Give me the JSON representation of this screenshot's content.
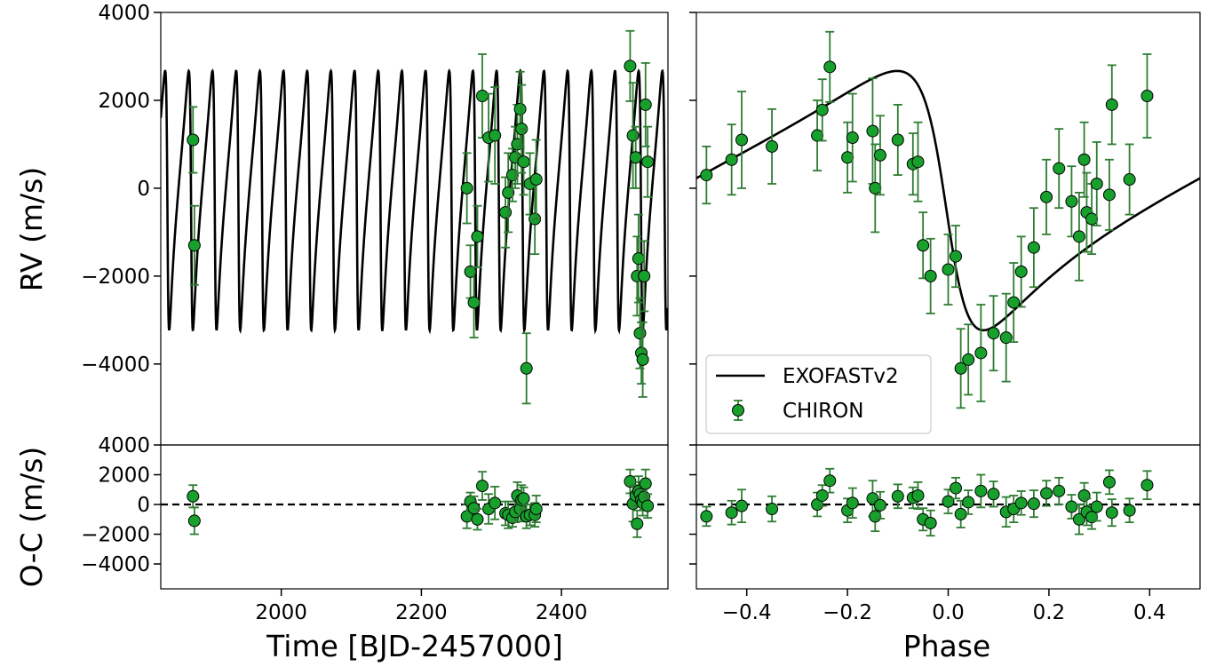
{
  "chart_data": [
    {
      "id": "rv_time",
      "type": "scatter",
      "ylabel": "RV (m/s)",
      "xlim": [
        1828,
        2552
      ],
      "ylim": [
        -5750,
        4000
      ],
      "yticks": [
        -4000,
        -2000,
        0,
        2000,
        4000
      ],
      "xticks": [
        2000,
        2200,
        2400
      ],
      "ytick_labels": [
        "−4000",
        "−2000",
        "0",
        "2000",
        "4000"
      ],
      "model": {
        "name": "EXOFASTv2",
        "color": "#000000",
        "period_days": 33.8,
        "t_min_rv": 1840,
        "k": 2950,
        "e": 0.55,
        "omega_deg": 100,
        "gamma": 0
      },
      "series": [
        {
          "name": "CHIRON",
          "color": "#18a02d",
          "error_color": "#2e7d32",
          "x": [
            1874,
            1876,
            2265,
            2270,
            2275,
            2280,
            2287,
            2296,
            2305,
            2320,
            2324,
            2330,
            2334,
            2337,
            2341,
            2343,
            2346,
            2350,
            2355,
            2362,
            2364,
            2498,
            2502,
            2506,
            2508,
            2510,
            2512,
            2514,
            2516,
            2518,
            2520,
            2523
          ],
          "y": [
            1100,
            -1300,
            0,
            -1900,
            -2600,
            -1100,
            2100,
            1150,
            1200,
            -550,
            -100,
            300,
            700,
            1000,
            1800,
            1350,
            600,
            -4100,
            100,
            -700,
            200,
            2780,
            1200,
            700,
            -2000,
            -1600,
            -3300,
            -3750,
            -3900,
            -2000,
            1900,
            600
          ],
          "yerr": [
            750,
            900,
            800,
            600,
            800,
            700,
            950,
            1000,
            1100,
            800,
            900,
            600,
            700,
            900,
            850,
            1000,
            750,
            800,
            700,
            800,
            900,
            800,
            1200,
            700,
            900,
            1000,
            800,
            700,
            850,
            800,
            950,
            800
          ]
        }
      ]
    },
    {
      "id": "rv_phase",
      "type": "scatter",
      "xlabel": "Phase",
      "xlim": [
        -0.5,
        0.5
      ],
      "ylim": [
        -5750,
        4000
      ],
      "yticks": [
        -4000,
        -2000,
        0,
        2000,
        4000
      ],
      "xticks": [
        -0.4,
        -0.2,
        0.0,
        0.2,
        0.4
      ],
      "xtick_labels": [
        "−0.4",
        "−0.2",
        "0.0",
        "0.2",
        "0.4"
      ],
      "legend": {
        "position": "lower-left",
        "entries": [
          "EXOFASTv2",
          "CHIRON"
        ]
      },
      "model": {
        "name": "EXOFASTv2",
        "color": "#000000",
        "phase_min_rv": 0.07,
        "k": 2950,
        "e": 0.55,
        "omega_deg": 100,
        "gamma": 0
      },
      "series": [
        {
          "name": "CHIRON",
          "color": "#18a02d",
          "error_color": "#2e7d32",
          "x": [
            -0.48,
            -0.43,
            -0.41,
            -0.35,
            -0.26,
            -0.25,
            -0.235,
            -0.2,
            -0.19,
            -0.15,
            -0.145,
            -0.135,
            -0.1,
            -0.07,
            -0.06,
            -0.05,
            -0.035,
            0.0,
            0.015,
            0.025,
            0.04,
            0.065,
            0.09,
            0.115,
            0.13,
            0.145,
            0.17,
            0.195,
            0.22,
            0.245,
            0.26,
            0.27,
            0.275,
            0.285,
            0.295,
            0.32,
            0.325,
            0.36,
            0.395
          ],
          "y": [
            300,
            650,
            1100,
            950,
            1200,
            1780,
            2760,
            700,
            1150,
            1300,
            0,
            750,
            1100,
            550,
            600,
            -1300,
            -2000,
            -1850,
            -1550,
            -4100,
            -3900,
            -3750,
            -3300,
            -3400,
            -2600,
            -1900,
            -1350,
            -200,
            450,
            -300,
            -1100,
            650,
            -550,
            -700,
            100,
            -150,
            1900,
            200,
            2100
          ],
          "yerr": [
            650,
            800,
            1100,
            850,
            800,
            700,
            800,
            800,
            1000,
            1200,
            1000,
            900,
            800,
            700,
            900,
            750,
            850,
            800,
            700,
            900,
            800,
            1100,
            850,
            1000,
            900,
            800,
            900,
            850,
            900,
            800,
            1000,
            850,
            900,
            800,
            950,
            800,
            900,
            800,
            950
          ]
        }
      ]
    },
    {
      "id": "oc_time",
      "type": "scatter",
      "xlabel": "Time [BJD-2457000]",
      "ylabel": "O-C (m/s)",
      "xlim": [
        1828,
        2552
      ],
      "ylim": [
        -5750,
        4000
      ],
      "yticks": [
        -4000,
        -2000,
        0,
        2000,
        4000
      ],
      "xticks": [
        2000,
        2200,
        2400
      ],
      "ytick_labels": [
        "−4000",
        "−2000",
        "0",
        "2000",
        "4000"
      ],
      "xtick_labels": [
        "2000",
        "2200",
        "2400"
      ],
      "series": [
        {
          "name": "CHIRON",
          "color": "#18a02d",
          "error_color": "#2e7d32",
          "x": [
            1874,
            1876,
            2265,
            2270,
            2275,
            2280,
            2287,
            2296,
            2305,
            2320,
            2324,
            2330,
            2334,
            2337,
            2341,
            2343,
            2346,
            2350,
            2355,
            2362,
            2364,
            2498,
            2502,
            2506,
            2508,
            2510,
            2512,
            2514,
            2516,
            2518,
            2520,
            2523
          ],
          "y": [
            550,
            -1100,
            -800,
            200,
            -250,
            -1000,
            1250,
            -300,
            100,
            -600,
            -700,
            -900,
            -500,
            600,
            -300,
            300,
            400,
            -800,
            -700,
            -700,
            -300,
            1550,
            50,
            600,
            -1300,
            900,
            700,
            300,
            100,
            500,
            1400,
            -100
          ],
          "yerr": [
            750,
            900,
            800,
            600,
            800,
            700,
            950,
            1000,
            1100,
            800,
            900,
            600,
            700,
            900,
            850,
            1000,
            750,
            800,
            700,
            800,
            900,
            800,
            1200,
            700,
            900,
            1000,
            800,
            700,
            850,
            800,
            950,
            800
          ]
        }
      ],
      "reference_line": {
        "y": 0,
        "style": "dashed"
      }
    },
    {
      "id": "oc_phase",
      "type": "scatter",
      "xlim": [
        -0.5,
        0.5
      ],
      "ylim": [
        -5750,
        4000
      ],
      "yticks": [
        -4000,
        -2000,
        0,
        2000,
        4000
      ],
      "xticks": [
        -0.4,
        -0.2,
        0.0,
        0.2,
        0.4
      ],
      "series": [
        {
          "name": "CHIRON",
          "color": "#18a02d",
          "error_color": "#2e7d32",
          "x": [
            -0.48,
            -0.43,
            -0.41,
            -0.35,
            -0.26,
            -0.25,
            -0.235,
            -0.2,
            -0.19,
            -0.15,
            -0.145,
            -0.135,
            -0.1,
            -0.07,
            -0.06,
            -0.05,
            -0.035,
            0.0,
            0.015,
            0.025,
            0.04,
            0.065,
            0.09,
            0.115,
            0.13,
            0.145,
            0.17,
            0.195,
            0.22,
            0.245,
            0.26,
            0.27,
            0.275,
            0.285,
            0.295,
            0.32,
            0.325,
            0.36,
            0.395
          ],
          "y": [
            -800,
            -550,
            -100,
            -300,
            0,
            600,
            1600,
            -400,
            100,
            400,
            -800,
            -50,
            550,
            450,
            600,
            -1000,
            -1250,
            200,
            1100,
            -650,
            150,
            900,
            700,
            -500,
            -300,
            100,
            50,
            750,
            900,
            -150,
            -1000,
            600,
            -500,
            -850,
            -150,
            1500,
            -550,
            -400,
            1300
          ],
          "yerr": [
            650,
            800,
            1100,
            850,
            800,
            700,
            800,
            800,
            1000,
            1200,
            1000,
            900,
            800,
            700,
            900,
            750,
            850,
            800,
            700,
            900,
            800,
            1100,
            850,
            1000,
            900,
            800,
            900,
            850,
            900,
            800,
            1000,
            850,
            900,
            800,
            950,
            800,
            900,
            800,
            950
          ]
        }
      ],
      "reference_line": {
        "y": 0,
        "style": "dashed"
      }
    }
  ]
}
